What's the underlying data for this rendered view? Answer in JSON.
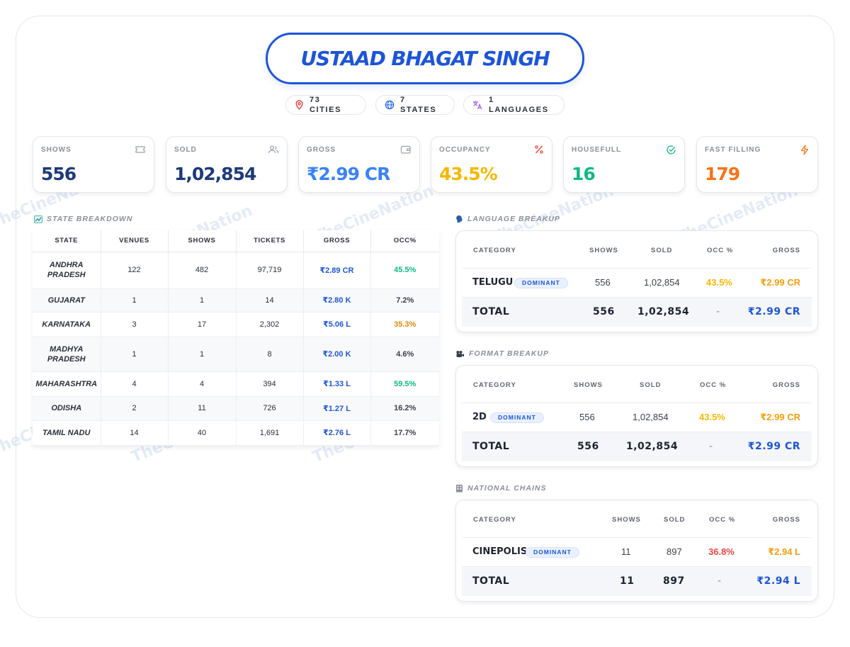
{
  "title": "USTAAD BHAGAT SINGH",
  "chips": {
    "cities": {
      "count": "73",
      "label": "CITIES",
      "icon": "map-pin-icon"
    },
    "states": {
      "count": "7",
      "label": "STATES",
      "icon": "globe-icon"
    },
    "languages": {
      "label": "1 LANGUAGES",
      "icon": "translate-icon"
    }
  },
  "stats": {
    "shows": {
      "label": "SHOWS",
      "value": "556",
      "color": "#1e3a7a",
      "icon": "ticket-icon"
    },
    "sold": {
      "label": "SOLD",
      "value": "1,02,854",
      "color": "#1e3a7a",
      "icon": "users-icon"
    },
    "gross": {
      "label": "GROSS",
      "value": "₹2.99 CR",
      "color": "#3b82f6",
      "icon": "wallet-icon"
    },
    "occupancy": {
      "label": "OCCUPANCY",
      "value": "43.5%",
      "color": "#f5b800",
      "icon": "percent-icon"
    },
    "housefull": {
      "label": "HOUSEFULL",
      "value": "16",
      "color": "#10b981",
      "icon": "check-circle-icon"
    },
    "fast_filling": {
      "label": "FAST FILLING",
      "value": "179",
      "color": "#f97316",
      "icon": "lightning-icon"
    }
  },
  "state_breakdown": {
    "heading": "STATE BREAKDOWN",
    "columns": [
      "STATE",
      "VENUES",
      "SHOWS",
      "TICKETS",
      "GROSS",
      "OCC%"
    ],
    "rows": [
      {
        "state": "ANDHRA PRADESH",
        "venues": "122",
        "shows": "482",
        "tickets": "97,719",
        "gross": "₹2.89 CR",
        "occ": "45.5%",
        "occ_color": "#10b981"
      },
      {
        "state": "GUJARAT",
        "venues": "1",
        "shows": "1",
        "tickets": "14",
        "gross": "₹2.80 K",
        "occ": "7.2%",
        "occ_color": "#3a3f4b"
      },
      {
        "state": "KARNATAKA",
        "venues": "3",
        "shows": "17",
        "tickets": "2,302",
        "gross": "₹5.06 L",
        "occ": "35.3%",
        "occ_color": "#d98a0b"
      },
      {
        "state": "MADHYA PRADESH",
        "venues": "1",
        "shows": "1",
        "tickets": "8",
        "gross": "₹2.00 K",
        "occ": "4.6%",
        "occ_color": "#3a3f4b"
      },
      {
        "state": "MAHARASHTRA",
        "venues": "4",
        "shows": "4",
        "tickets": "394",
        "gross": "₹1.33 L",
        "occ": "59.5%",
        "occ_color": "#10b981"
      },
      {
        "state": "ODISHA",
        "venues": "2",
        "shows": "11",
        "tickets": "726",
        "gross": "₹1.27 L",
        "occ": "16.2%",
        "occ_color": "#3a3f4b"
      },
      {
        "state": "TAMIL NADU",
        "venues": "14",
        "shows": "40",
        "tickets": "1,691",
        "gross": "₹2.76 L",
        "occ": "17.7%",
        "occ_color": "#3a3f4b"
      }
    ]
  },
  "language_breakup": {
    "heading": "LANGUAGE BREAKUP",
    "columns": [
      "CATEGORY",
      "SHOWS",
      "SOLD",
      "OCC %",
      "GROSS"
    ],
    "row": {
      "name": "TELUGU",
      "badge": "DOMINANT",
      "shows": "556",
      "sold": "1,02,854",
      "occ": "43.5%",
      "gross": "₹2.99 CR"
    },
    "total": {
      "label": "TOTAL",
      "shows": "556",
      "sold": "1,02,854",
      "occ": "-",
      "gross": "₹2.99 CR"
    }
  },
  "format_breakup": {
    "heading": "FORMAT BREAKUP",
    "columns": [
      "CATEGORY",
      "SHOWS",
      "SOLD",
      "OCC %",
      "GROSS"
    ],
    "row": {
      "name": "2D",
      "badge": "DOMINANT",
      "shows": "556",
      "sold": "1,02,854",
      "occ": "43.5%",
      "gross": "₹2.99 CR"
    },
    "total": {
      "label": "TOTAL",
      "shows": "556",
      "sold": "1,02,854",
      "occ": "-",
      "gross": "₹2.99 CR"
    }
  },
  "national_chains": {
    "heading": "NATIONAL CHAINS",
    "columns": [
      "CATEGORY",
      "SHOWS",
      "SOLD",
      "OCC %",
      "GROSS"
    ],
    "row": {
      "name": "CINEPOLIS",
      "badge": "DOMINANT",
      "shows": "11",
      "sold": "897",
      "occ": "36.8%",
      "gross": "₹2.94 L"
    },
    "total": {
      "label": "TOTAL",
      "shows": "11",
      "sold": "897",
      "occ": "-",
      "gross": "₹2.94 L"
    }
  },
  "watermark": "TheCineNation",
  "colors": {
    "accent": "#1d55d8",
    "occ_yellow": "#f5b800",
    "gross_orange": "#f59e0b",
    "occ_red": "#ef4444"
  }
}
